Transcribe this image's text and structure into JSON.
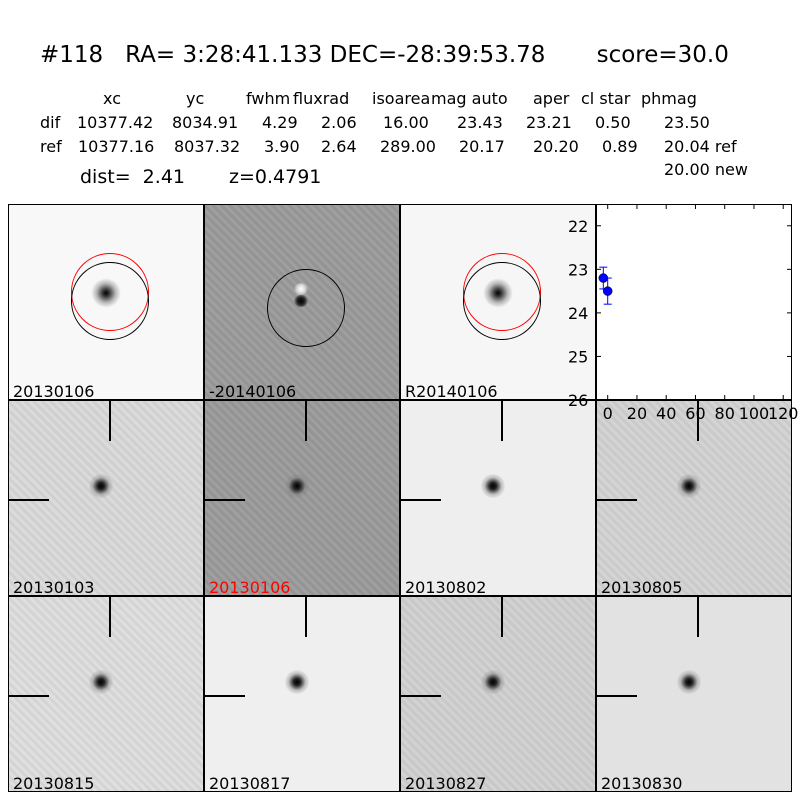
{
  "header": {
    "title": "#118   RA= 3:28:41.133 DEC=-28:39:53.78       score=30.0",
    "columns": [
      "xc",
      "yc",
      "fwhm",
      "fluxrad",
      "isoarea",
      "mag auto",
      "aper",
      "cl star",
      "phmag"
    ],
    "rows": [
      {
        "label": "dif",
        "values": [
          "10377.42",
          "8034.91",
          "4.29",
          "2.06",
          "16.00",
          "23.43",
          "23.21",
          "0.50",
          "23.50"
        ]
      },
      {
        "label": "ref",
        "values": [
          "10377.16",
          "8037.32",
          "3.90",
          "2.64",
          "289.00",
          "20.17",
          "20.20",
          "0.89",
          "20.04 ref"
        ]
      }
    ],
    "phmag_new": "20.00 new",
    "dist": "dist=  2.41",
    "z": "z=0.4791"
  },
  "panels": [
    {
      "label": "20130106",
      "label_color": "#000000",
      "bg": "#f8f8f8",
      "type": "circles"
    },
    {
      "label": "-20140106",
      "label_color": "#000000",
      "bg": "#9a9a9a",
      "type": "diff"
    },
    {
      "label": "R20140106",
      "label_color": "#000000",
      "bg": "#f6f6f6",
      "type": "circles"
    },
    {
      "label": "20130103",
      "label_color": "#000000",
      "bg": "#d9d9d9",
      "type": "cross"
    },
    {
      "label": "20130106",
      "label_color": "#ff0000",
      "bg": "#9a9a9a",
      "type": "cross"
    },
    {
      "label": "20130802",
      "label_color": "#000000",
      "bg": "#eeeeee",
      "type": "cross"
    },
    {
      "label": "20130805",
      "label_color": "#000000",
      "bg": "#d2d2d2",
      "type": "cross"
    },
    {
      "label": "20130815",
      "label_color": "#000000",
      "bg": "#dddddd",
      "type": "cross"
    },
    {
      "label": "20130817",
      "label_color": "#000000",
      "bg": "#efefef",
      "type": "cross"
    },
    {
      "label": "20130827",
      "label_color": "#000000",
      "bg": "#d0d0d0",
      "type": "cross"
    },
    {
      "label": "20130830",
      "label_color": "#000000",
      "bg": "#e2e2e2",
      "type": "cross"
    }
  ],
  "chart_data": {
    "type": "scatter",
    "x": [
      -3,
      0
    ],
    "y": [
      23.2,
      23.5
    ],
    "yerr": [
      0.25,
      0.3
    ],
    "xlim": [
      -8,
      126
    ],
    "ylim": [
      26,
      21.5
    ],
    "y_inverted": true,
    "xticks": [
      "0",
      "20",
      "40",
      "60",
      "80",
      "100",
      "120"
    ],
    "yticks": [
      "22",
      "23",
      "24",
      "25",
      "26"
    ],
    "marker_color": "#0000ff",
    "grid": false
  }
}
